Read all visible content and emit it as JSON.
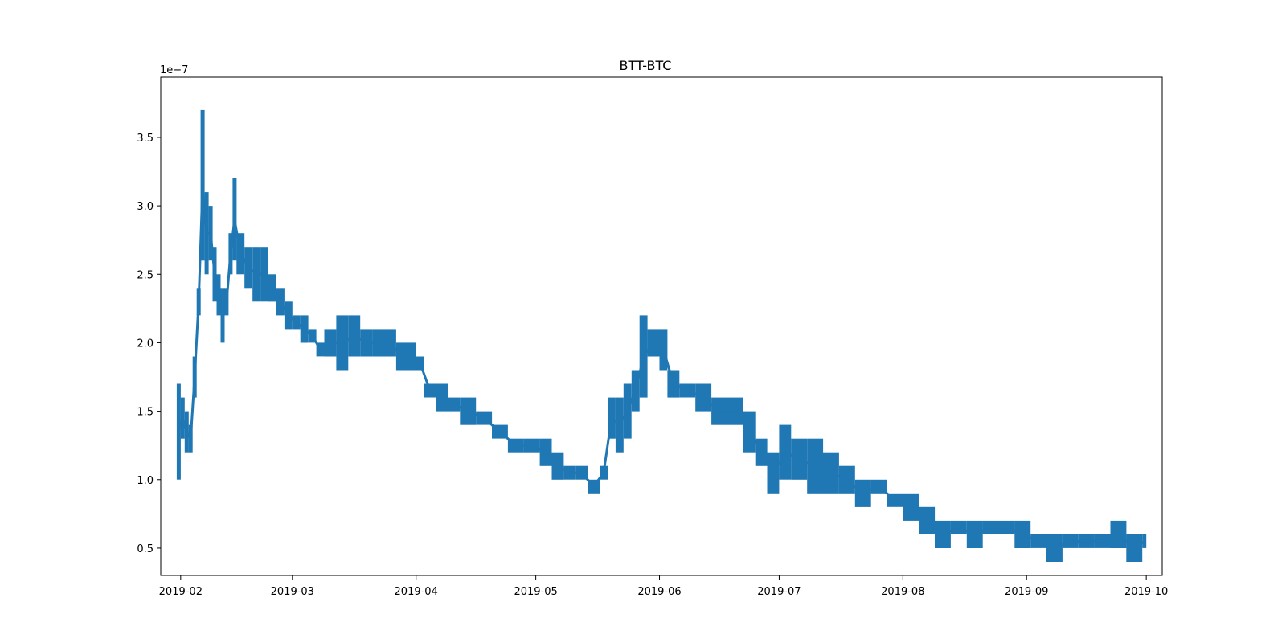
{
  "chart_data": {
    "type": "line",
    "title": "BTT-BTC",
    "xlabel": "",
    "ylabel": "",
    "y_offset_label": "1e−7",
    "grid": false,
    "legend": "none",
    "series_color": "#1f77b4",
    "xlim": [
      "2019-01-27",
      "2019-10-05"
    ],
    "ylim": [
      0.3,
      3.94
    ],
    "x_ticks": [
      "2019-02",
      "2019-03",
      "2019-04",
      "2019-05",
      "2019-06",
      "2019-07",
      "2019-08",
      "2019-09",
      "2019-10"
    ],
    "y_ticks": [
      "0.5",
      "1.0",
      "1.5",
      "2.0",
      "2.5",
      "3.0",
      "3.5"
    ],
    "series": [
      {
        "x": [
          "2019-01-31",
          "2019-02-01",
          "2019-02-02",
          "2019-02-03",
          "2019-02-04",
          "2019-02-05",
          "2019-02-06",
          "2019-02-07",
          "2019-02-08",
          "2019-02-09",
          "2019-02-10",
          "2019-02-11",
          "2019-02-12",
          "2019-02-13",
          "2019-02-14",
          "2019-02-15",
          "2019-02-17",
          "2019-02-19",
          "2019-02-21",
          "2019-02-23",
          "2019-02-25",
          "2019-02-27",
          "2019-03-01",
          "2019-03-03",
          "2019-03-05",
          "2019-03-07",
          "2019-03-09",
          "2019-03-12",
          "2019-03-15",
          "2019-03-18",
          "2019-03-21",
          "2019-03-24",
          "2019-03-27",
          "2019-03-30",
          "2019-04-01",
          "2019-04-03",
          "2019-04-06",
          "2019-04-09",
          "2019-04-12",
          "2019-04-16",
          "2019-04-20",
          "2019-04-24",
          "2019-04-28",
          "2019-05-02",
          "2019-05-05",
          "2019-05-08",
          "2019-05-11",
          "2019-05-14",
          "2019-05-17",
          "2019-05-19",
          "2019-05-21",
          "2019-05-23",
          "2019-05-25",
          "2019-05-27",
          "2019-05-29",
          "2019-06-01",
          "2019-06-03",
          "2019-06-06",
          "2019-06-10",
          "2019-06-14",
          "2019-06-18",
          "2019-06-22",
          "2019-06-25",
          "2019-06-28",
          "2019-07-01",
          "2019-07-04",
          "2019-07-08",
          "2019-07-12",
          "2019-07-16",
          "2019-07-20",
          "2019-07-24",
          "2019-07-28",
          "2019-08-01",
          "2019-08-05",
          "2019-08-09",
          "2019-08-13",
          "2019-08-17",
          "2019-08-21",
          "2019-08-25",
          "2019-08-29",
          "2019-09-02",
          "2019-09-06",
          "2019-09-10",
          "2019-09-14",
          "2019-09-18",
          "2019-09-22",
          "2019-09-26",
          "2019-09-30"
        ],
        "low": [
          1.0,
          1.3,
          1.2,
          1.2,
          1.6,
          2.2,
          2.6,
          2.5,
          2.6,
          2.3,
          2.2,
          2.0,
          2.2,
          2.5,
          2.6,
          2.5,
          2.4,
          2.3,
          2.3,
          2.3,
          2.2,
          2.1,
          2.1,
          2.0,
          2.0,
          1.9,
          1.9,
          1.8,
          1.9,
          1.9,
          1.9,
          1.9,
          1.8,
          1.8,
          1.8,
          1.6,
          1.5,
          1.5,
          1.4,
          1.4,
          1.3,
          1.2,
          1.2,
          1.1,
          1.0,
          1.0,
          1.0,
          0.9,
          1.0,
          1.3,
          1.2,
          1.3,
          1.5,
          1.6,
          1.9,
          1.8,
          1.6,
          1.6,
          1.5,
          1.4,
          1.4,
          1.2,
          1.1,
          0.9,
          1.0,
          1.0,
          0.9,
          0.9,
          0.9,
          0.8,
          0.9,
          0.8,
          0.7,
          0.6,
          0.5,
          0.6,
          0.5,
          0.6,
          0.6,
          0.5,
          0.5,
          0.4,
          0.5,
          0.5,
          0.5,
          0.5,
          0.4,
          0.5
        ],
        "high": [
          1.7,
          1.6,
          1.5,
          1.4,
          1.9,
          2.4,
          3.7,
          3.1,
          3.0,
          2.7,
          2.5,
          2.4,
          2.4,
          2.8,
          3.2,
          2.8,
          2.7,
          2.7,
          2.7,
          2.5,
          2.4,
          2.3,
          2.2,
          2.2,
          2.1,
          2.0,
          2.1,
          2.2,
          2.2,
          2.1,
          2.1,
          2.1,
          2.0,
          2.0,
          1.9,
          1.7,
          1.7,
          1.6,
          1.6,
          1.5,
          1.4,
          1.3,
          1.3,
          1.3,
          1.2,
          1.1,
          1.1,
          1.0,
          1.1,
          1.6,
          1.6,
          1.7,
          1.8,
          2.2,
          2.1,
          2.1,
          1.8,
          1.7,
          1.7,
          1.6,
          1.6,
          1.5,
          1.3,
          1.2,
          1.4,
          1.3,
          1.3,
          1.2,
          1.1,
          1.0,
          1.0,
          0.9,
          0.9,
          0.8,
          0.7,
          0.7,
          0.7,
          0.7,
          0.7,
          0.7,
          0.6,
          0.6,
          0.6,
          0.6,
          0.6,
          0.7,
          0.6,
          0.6
        ]
      }
    ]
  }
}
